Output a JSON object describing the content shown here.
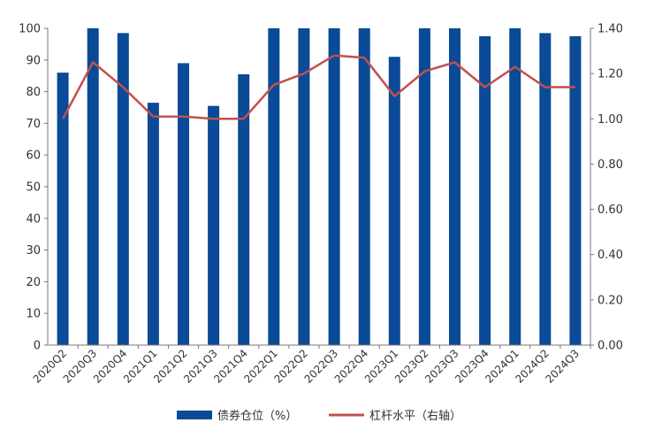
{
  "chart_data": {
    "type": "bar",
    "categories": [
      "2020Q2",
      "2020Q3",
      "2020Q4",
      "2021Q1",
      "2021Q2",
      "2021Q3",
      "2021Q4",
      "2022Q1",
      "2022Q2",
      "2022Q3",
      "2022Q4",
      "2023Q1",
      "2023Q2",
      "2023Q3",
      "2023Q4",
      "2024Q1",
      "2024Q2",
      "2024Q3"
    ],
    "series": [
      {
        "name": "债券仓位（%）",
        "type": "bar",
        "axis": "left",
        "color": "#0a4a96",
        "values": [
          86,
          100,
          98.5,
          76.5,
          89,
          75.5,
          85.5,
          100,
          100,
          100,
          100,
          91,
          100,
          100,
          97.5,
          100,
          98.5,
          97.5
        ]
      },
      {
        "name": "杠杆水平（右轴）",
        "type": "line",
        "axis": "right",
        "color": "#c0504d",
        "values": [
          1.0,
          1.25,
          1.14,
          1.01,
          1.01,
          1.0,
          1.0,
          1.15,
          1.2,
          1.28,
          1.27,
          1.1,
          1.21,
          1.25,
          1.14,
          1.23,
          1.14,
          1.14
        ]
      }
    ],
    "y_left": {
      "ylim": [
        0,
        100
      ],
      "ticks": [
        "0",
        "10",
        "20",
        "30",
        "40",
        "50",
        "60",
        "70",
        "80",
        "90",
        "100"
      ]
    },
    "y_right": {
      "ylim": [
        0,
        1.4
      ],
      "ticks": [
        "0.00",
        "0.20",
        "0.40",
        "0.60",
        "0.80",
        "1.00",
        "1.20",
        "1.40"
      ]
    },
    "grid": false,
    "legend_position": "bottom"
  }
}
